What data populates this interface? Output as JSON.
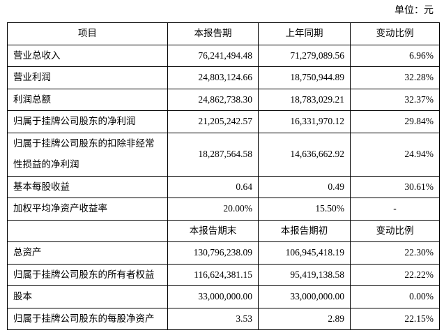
{
  "unit": "单位：元",
  "sections": [
    {
      "header": [
        "项目",
        "本报告期",
        "上年同期",
        "变动比例"
      ],
      "rows": [
        [
          "营业总收入",
          "76,241,494.48",
          "71,279,089.56",
          "6.96%"
        ],
        [
          "营业利润",
          "24,803,124.66",
          "18,750,944.89",
          "32.28%"
        ],
        [
          "利润总额",
          "24,862,738.30",
          "18,783,029.21",
          "32.37%"
        ],
        [
          "归属于挂牌公司股东的净利润",
          "21,205,242.57",
          "16,331,970.12",
          "29.84%"
        ],
        [
          "归属于挂牌公司股东的扣除非经常性损益的净利润",
          "18,287,564.58",
          "14,636,662.92",
          "24.94%"
        ],
        [
          "基本每股收益",
          "0.64",
          "0.49",
          "30.61%"
        ],
        [
          "加权平均净资产收益率",
          "20.00%",
          "15.50%",
          "-"
        ]
      ]
    },
    {
      "header": [
        "",
        "本报告期末",
        "本报告期初",
        "变动比例"
      ],
      "rows": [
        [
          "总资产",
          "130,796,238.09",
          "106,945,418.19",
          "22.30%"
        ],
        [
          "归属于挂牌公司股东的所有者权益",
          "116,624,381.15",
          "95,419,138.58",
          "22.22%"
        ],
        [
          "股本",
          "33,000,000.00",
          "33,000,000.00",
          "0.00%"
        ],
        [
          "归属于挂牌公司股东的每股净资产",
          "3.53",
          "2.89",
          "22.15%"
        ]
      ]
    }
  ]
}
